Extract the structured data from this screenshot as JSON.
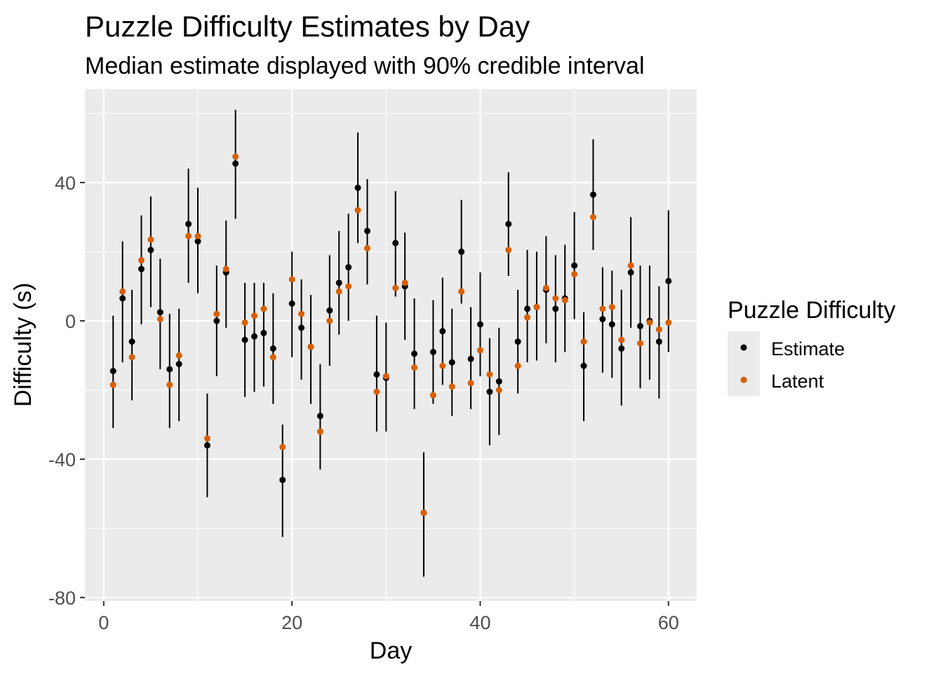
{
  "chart_data": {
    "type": "scatter",
    "title": "Puzzle Difficulty Estimates by Day",
    "subtitle": "Median estimate displayed with 90% credible interval",
    "xlabel": "Day",
    "ylabel": "Difficulty (s)",
    "xlim": [
      -2,
      63
    ],
    "ylim": [
      -81,
      67
    ],
    "x_ticks": [
      0,
      20,
      40,
      60
    ],
    "y_ticks": [
      -80,
      -40,
      0,
      40
    ],
    "grid": true,
    "legend": {
      "title": "Puzzle Difficulty",
      "position": "right",
      "entries": [
        "Estimate",
        "Latent"
      ]
    },
    "colors": {
      "Estimate": "#000000",
      "Latent": "#d95f02",
      "panel": "#ebebeb",
      "grid": "#ffffff"
    },
    "series": [
      {
        "name": "Estimate",
        "x": [
          1,
          2,
          3,
          4,
          5,
          6,
          7,
          8,
          9,
          10,
          11,
          12,
          13,
          14,
          15,
          16,
          17,
          18,
          19,
          20,
          21,
          22,
          23,
          24,
          25,
          26,
          27,
          28,
          29,
          30,
          31,
          32,
          33,
          34,
          35,
          36,
          37,
          38,
          39,
          40,
          41,
          42,
          43,
          44,
          45,
          46,
          47,
          48,
          49,
          50,
          51,
          52,
          53,
          54,
          55,
          56,
          57,
          58,
          59,
          60
        ],
        "y": [
          -14.5,
          6.5,
          -6,
          15,
          20.5,
          2.5,
          -14,
          -12.5,
          28,
          23,
          -36,
          0,
          14,
          45.5,
          -5.5,
          -4.5,
          -3.5,
          -8,
          -46,
          5,
          -2,
          -7.5,
          -27.5,
          3,
          11,
          15.5,
          38.5,
          26,
          -15.5,
          -16.5,
          22.5,
          10,
          -9.5,
          -55.5,
          -9,
          -3,
          -12,
          20,
          -11,
          -1,
          -20.5,
          -17.5,
          28,
          -6,
          3.5,
          4,
          9,
          3.5,
          6.5,
          16,
          -13,
          36.5,
          0.5,
          -1,
          -8,
          14,
          -1.5,
          0,
          -6,
          11.5
        ],
        "lower": [
          -31,
          -12,
          -23,
          -1,
          4,
          -14,
          -31,
          -29,
          11,
          8,
          -51,
          -16,
          -2,
          29.5,
          -22,
          -20.5,
          -19,
          -24,
          -62.5,
          -10.5,
          -17,
          -24,
          -43,
          -13,
          -4,
          0,
          22.5,
          10.5,
          -32,
          -32,
          7,
          -5.5,
          -25.5,
          -74,
          -24,
          -18.5,
          -27.5,
          5,
          -25.5,
          -16,
          -36,
          -33,
          13,
          -21,
          -12,
          -11.5,
          -6.5,
          -12,
          -9,
          0.5,
          -29,
          20.5,
          -15,
          -16.5,
          -24.5,
          -2,
          -19.5,
          -17,
          -22.5,
          -9
        ],
        "upper": [
          1.5,
          23,
          9,
          30.5,
          36,
          18,
          2,
          3.5,
          44,
          38.5,
          -21,
          16,
          29,
          61,
          11,
          11,
          11,
          8,
          -30,
          20,
          12,
          7.5,
          -12.5,
          19,
          26,
          31,
          54.5,
          41,
          1.5,
          -0.5,
          37.5,
          25.5,
          6.5,
          -38,
          6,
          12.5,
          3.5,
          35,
          4,
          14,
          -5,
          -2,
          43,
          9,
          20.5,
          20,
          24.5,
          19,
          22,
          31.5,
          2.5,
          52.5,
          15.5,
          14.5,
          9,
          30,
          16,
          16,
          10,
          32
        ]
      },
      {
        "name": "Latent",
        "x": [
          1,
          2,
          3,
          4,
          5,
          6,
          7,
          8,
          9,
          10,
          11,
          12,
          13,
          14,
          15,
          16,
          17,
          18,
          19,
          20,
          21,
          22,
          23,
          24,
          25,
          26,
          27,
          28,
          29,
          30,
          31,
          32,
          33,
          34,
          35,
          36,
          37,
          38,
          39,
          40,
          41,
          42,
          43,
          44,
          45,
          46,
          47,
          48,
          49,
          50,
          51,
          52,
          53,
          54,
          55,
          56,
          57,
          58,
          59,
          60
        ],
        "y": [
          -18.5,
          8.5,
          -10.5,
          17.5,
          23.5,
          0.5,
          -18.5,
          -10,
          24.5,
          24.5,
          -34,
          2,
          15,
          47.5,
          -0.5,
          1.5,
          3.5,
          -10.5,
          -36.5,
          12,
          2,
          -7.5,
          -32,
          0,
          8.5,
          10,
          32,
          21,
          -20.5,
          -16,
          9.5,
          11,
          -13.5,
          -55.5,
          -21.5,
          -13,
          -19,
          8.5,
          -18,
          -8.5,
          -15.5,
          -20,
          20.5,
          -13,
          1,
          4,
          9.5,
          6.5,
          6,
          13.5,
          -6,
          30,
          3.5,
          4,
          -5.5,
          16,
          -6.5,
          -0.5,
          -2.5,
          -0.5
        ]
      }
    ]
  }
}
